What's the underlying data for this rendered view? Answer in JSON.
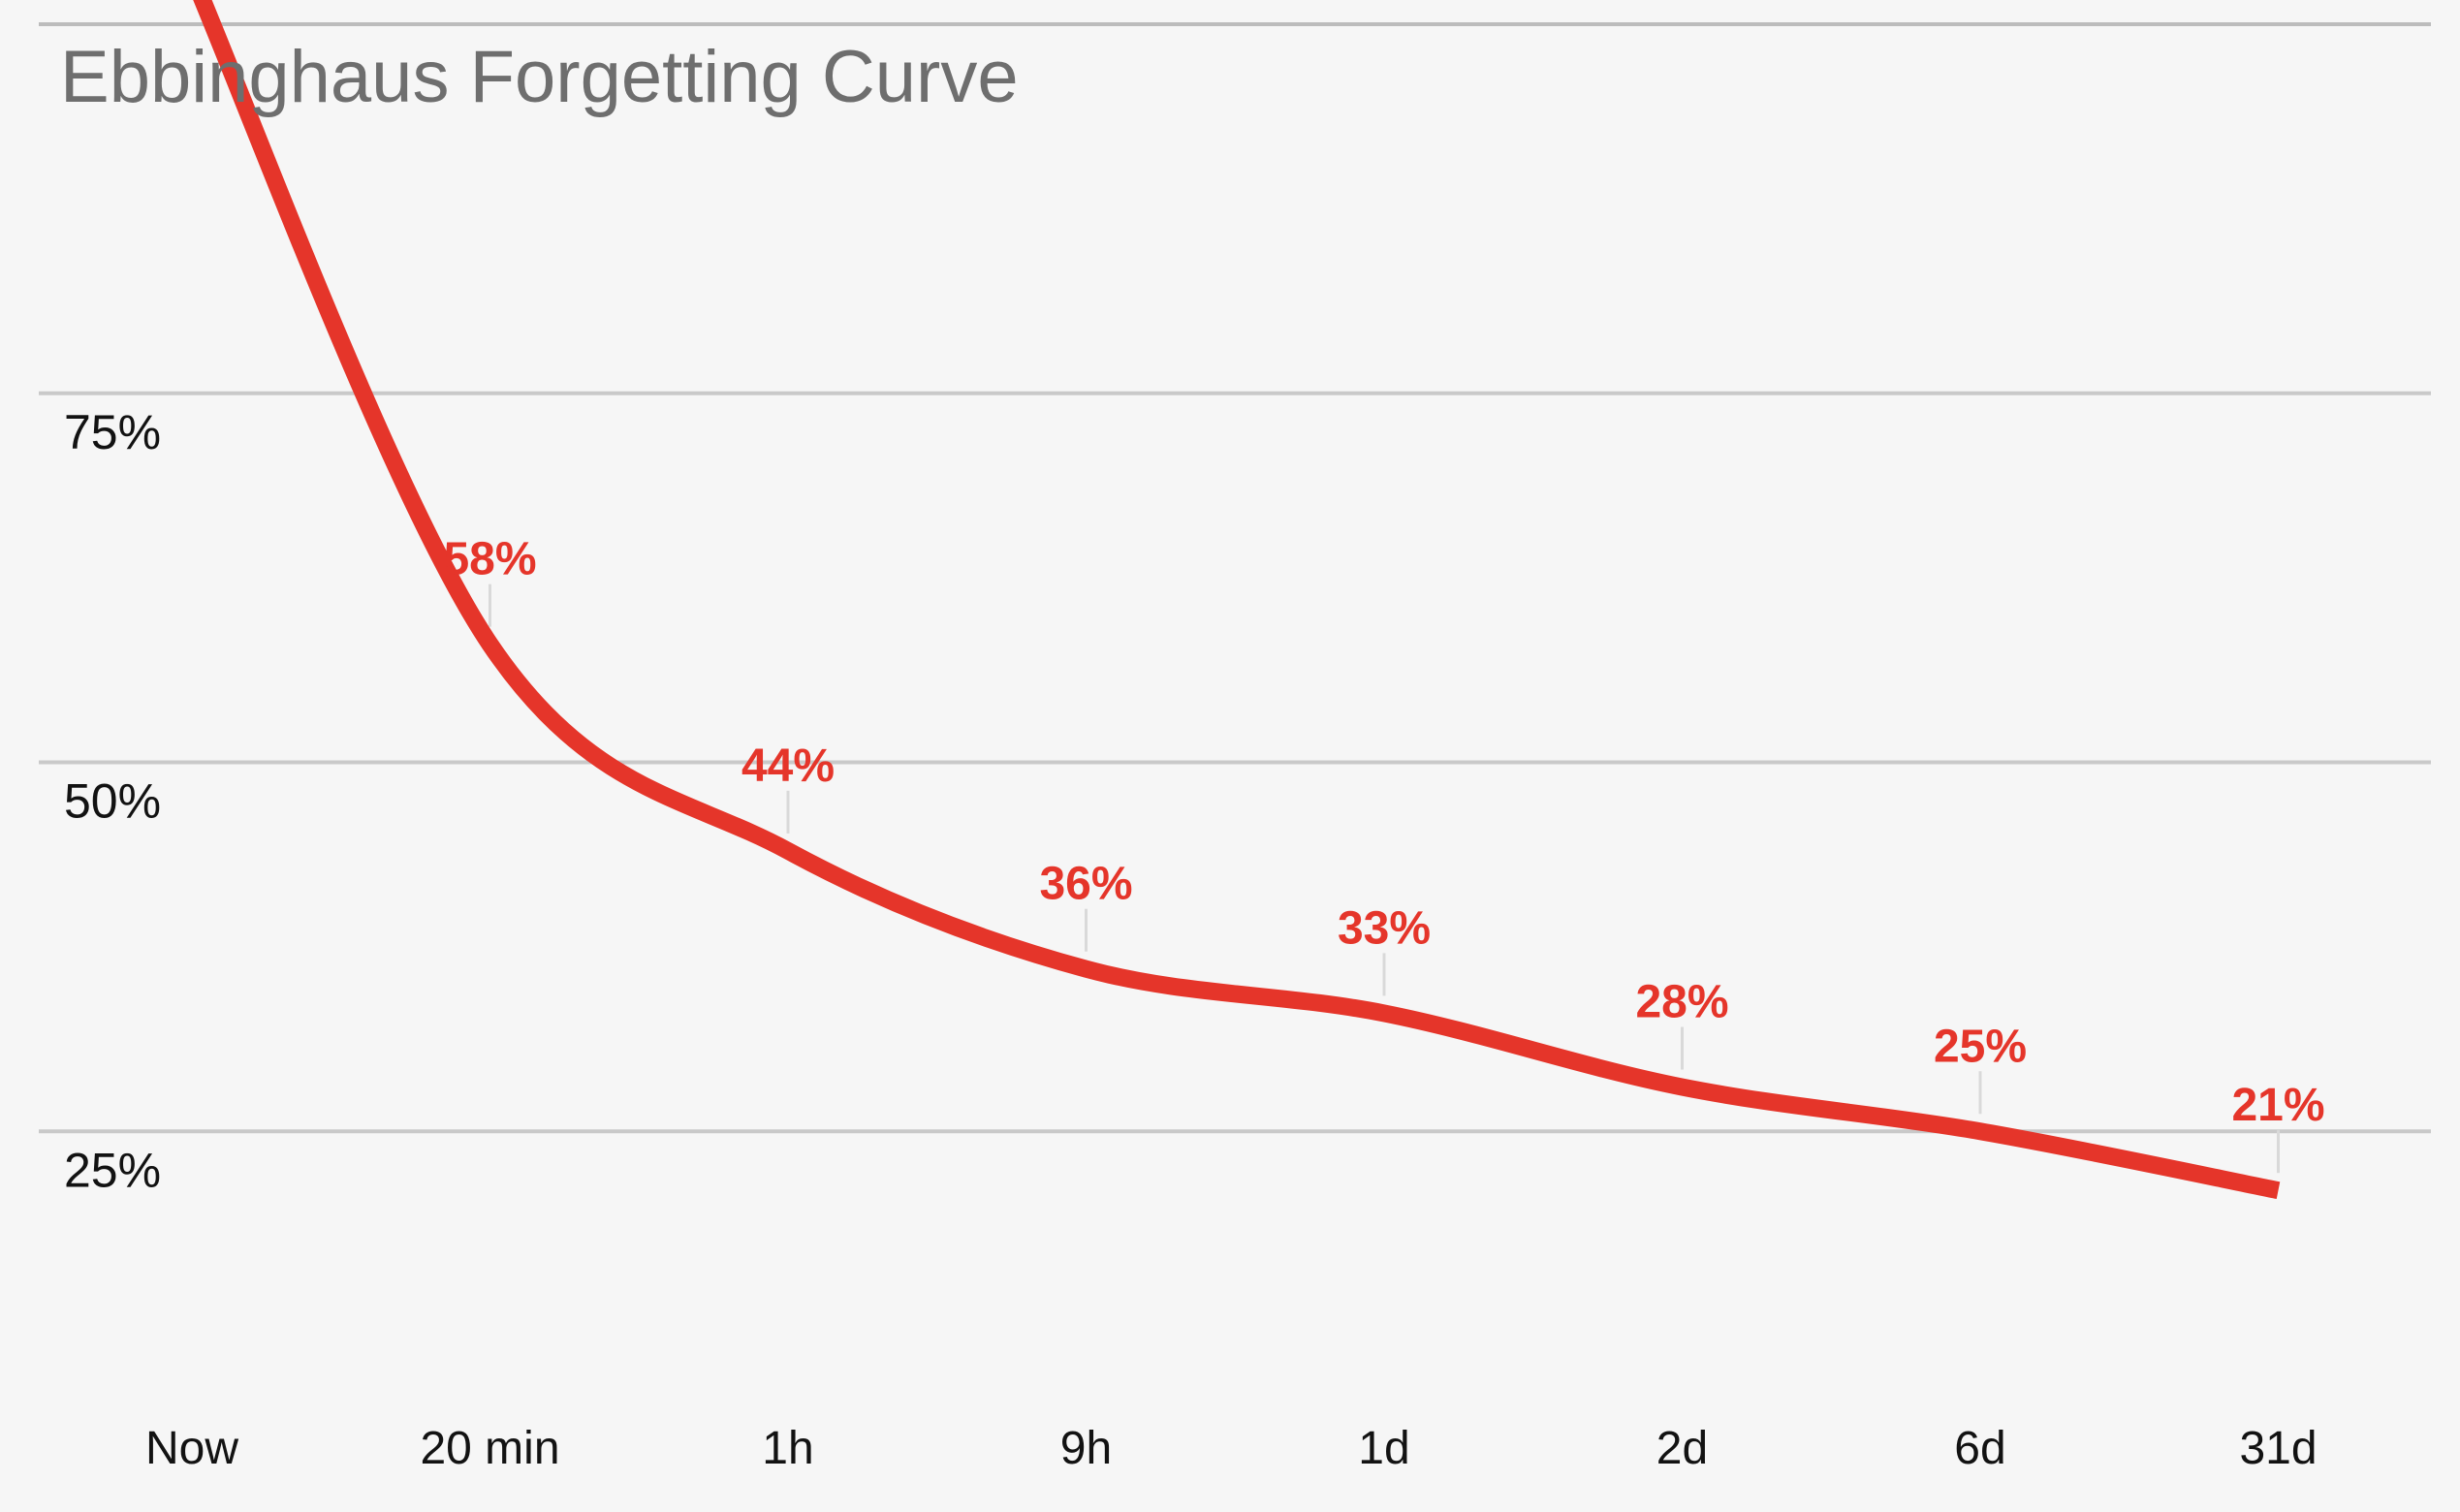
{
  "chart_data": {
    "type": "line",
    "title": "Ebbinghaus Forgetting Curve",
    "categories": [
      "Now",
      "20 min",
      "1h",
      "9h",
      "1d",
      "2d",
      "6d",
      "31d"
    ],
    "series": [
      {
        "values": [
          100,
          58,
          44,
          36,
          33,
          28,
          25,
          21
        ]
      }
    ],
    "data_labels": [
      null,
      "58%",
      "44%",
      "36%",
      "33%",
      "28%",
      "25%",
      "21%"
    ],
    "y_axis": {
      "min": 0,
      "max": 100,
      "gridlines": [
        100,
        75,
        50,
        25
      ],
      "ticks": [
        {
          "value": 75,
          "label": "75%"
        },
        {
          "value": 50,
          "label": "50%"
        },
        {
          "value": 25,
          "label": "25%"
        }
      ]
    },
    "x_axis": {
      "tick_labels": [
        "Now",
        "20 min",
        "1h",
        "9h",
        "1d",
        "2d",
        "6d",
        "31d"
      ]
    },
    "legend": "none",
    "grid": "horizontal",
    "curve_style": "smooth",
    "colors": {
      "line": "#e5352a",
      "data_label": "#e5352a",
      "grid": "#c9c9c9",
      "grid_top": "#bcbcbc",
      "leader": "#d9d9d9",
      "axis_text": "#121212",
      "title": "#6e6e6e",
      "background": "#f6f6f6"
    }
  }
}
